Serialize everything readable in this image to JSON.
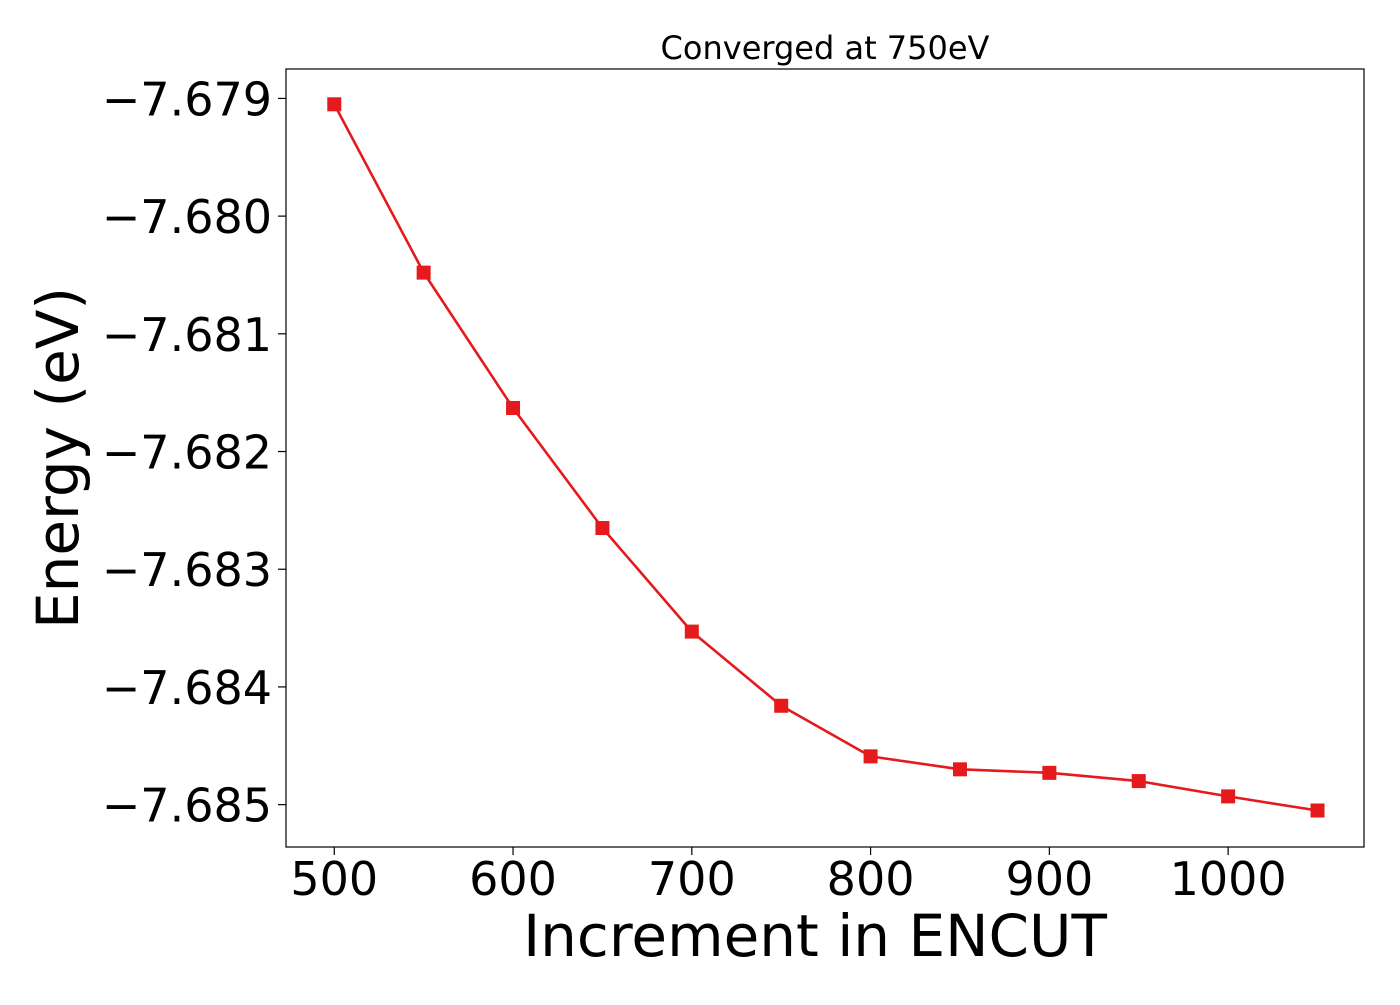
{
  "chart_data": {
    "type": "line",
    "title": "Converged at 750eV",
    "xlabel": "Increment in ENCUT",
    "ylabel": "Energy (eV)",
    "x": [
      500,
      550,
      600,
      650,
      700,
      750,
      800,
      850,
      900,
      950,
      1000,
      1050
    ],
    "series": [
      {
        "values": [
          -7.67905,
          -7.68048,
          -7.68163,
          -7.68265,
          -7.68353,
          -7.68416,
          -7.68459,
          -7.6847,
          -7.68473,
          -7.6848,
          -7.68493,
          -7.68505
        ],
        "color": "#e41a1c",
        "marker": "square"
      }
    ],
    "xlim": [
      473,
      1076
    ],
    "ylim": [
      -7.68536,
      -7.67875
    ],
    "xticks": [
      500,
      600,
      700,
      800,
      900,
      1000
    ],
    "xtick_labels": [
      "500",
      "600",
      "700",
      "800",
      "900",
      "1000"
    ],
    "yticks": [
      -7.679,
      -7.68,
      -7.681,
      -7.682,
      -7.683,
      -7.684,
      -7.685
    ],
    "ytick_labels": [
      "−7.679",
      "−7.680",
      "−7.681",
      "−7.682",
      "−7.683",
      "−7.684",
      "−7.685"
    ],
    "grid": false,
    "legend": "none"
  }
}
